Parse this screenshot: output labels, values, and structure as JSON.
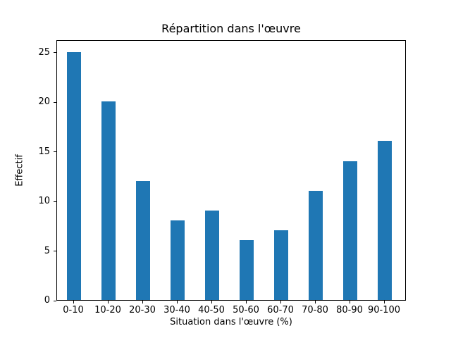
{
  "chart_data": {
    "type": "bar",
    "title": "Répartition dans l'œuvre",
    "xlabel": "Situation dans l'œuvre (%)",
    "ylabel": "Effectif",
    "categories": [
      "0-10",
      "10-20",
      "20-30",
      "30-40",
      "40-50",
      "50-60",
      "60-70",
      "70-80",
      "80-90",
      "90-100"
    ],
    "values": [
      25,
      20,
      12,
      8,
      9,
      6,
      7,
      11,
      14,
      16
    ],
    "yticks": [
      0,
      5,
      10,
      15,
      20,
      25
    ],
    "ylim": [
      0,
      26.25
    ],
    "bar_color": "#1f77b4",
    "grid": false,
    "legend_position": "none",
    "background_color": "#ffffff",
    "axis_color": "#000000"
  }
}
